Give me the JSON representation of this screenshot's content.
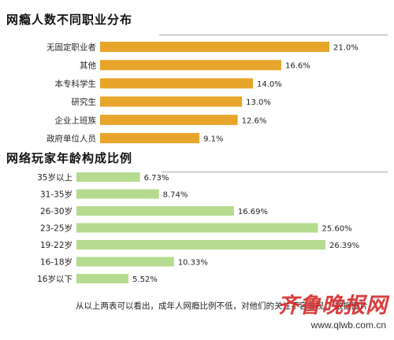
{
  "watermark": {
    "brand": "齐鲁晚报网",
    "url": "www.qlwb.com.cn"
  },
  "caption": "从以上两表可以看出，成年人网瘾比例不低，对他们的关注不容忽视。 数据图片",
  "chart_data": [
    {
      "type": "bar",
      "orientation": "horizontal",
      "title": "网瘾人数不同职业分布",
      "color": "#e8a52b",
      "categories": [
        "无固定职业者",
        "其他",
        "本专科学生",
        "研究生",
        "企业上班族",
        "政府单位人员"
      ],
      "values": [
        21.0,
        16.6,
        14.0,
        13.0,
        12.6,
        9.1
      ],
      "value_labels": [
        "21.0%",
        "16.6%",
        "14.0%",
        "13.0%",
        "12.6%",
        "9.1%"
      ],
      "unit": "%",
      "xlim": [
        0,
        21.0
      ],
      "grid": false
    },
    {
      "type": "bar",
      "orientation": "horizontal",
      "title": "网络玩家年龄构成比例",
      "color": "#b5db8e",
      "categories": [
        "35岁以上",
        "31-35岁",
        "26-30岁",
        "23-25岁",
        "19-22岁",
        "16-18岁",
        "16岁以下"
      ],
      "values": [
        6.73,
        8.74,
        16.69,
        25.6,
        26.39,
        10.33,
        5.52
      ],
      "value_labels": [
        "6.73%",
        "8.74%",
        "16.69%",
        "25.60%",
        "26.39%",
        "10.33%",
        "5.52%"
      ],
      "unit": "%",
      "xlim": [
        0,
        26.39
      ],
      "grid": false
    }
  ]
}
